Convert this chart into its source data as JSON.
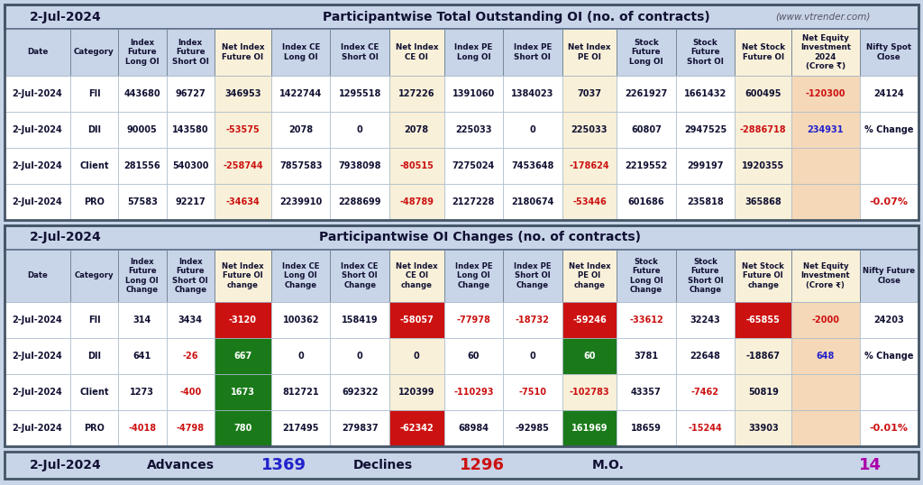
{
  "date": "2-Jul-2024",
  "title1": "Participantwise Total Outstanding OI (no. of contracts)",
  "title1_website": "(www.vtrender.com)",
  "title2": "Participantwise OI Changes (no. of contracts)",
  "bg_color": "#c8d4e8",
  "table1_header_cols": [
    "Date",
    "Category",
    "Index\nFuture\nLong OI",
    "Index\nFuture\nShort OI",
    "Net Index\nFuture OI",
    "Index CE\nLong OI",
    "Index CE\nShort OI",
    "Net Index\nCE OI",
    "Index PE\nLong OI",
    "Index PE\nShort OI",
    "Net Index\nPE OI",
    "Stock\nFuture\nLong OI",
    "Stock\nFuture\nShort OI",
    "Net Stock\nFuture OI",
    "Net Equity\nInvestment\n2024\n(Crore ₹)",
    "Nifty Spot\nClose"
  ],
  "table1_rows": [
    [
      "2-Jul-2024",
      "FII",
      "443680",
      "96727",
      "346953",
      "1422744",
      "1295518",
      "127226",
      "1391060",
      "1384023",
      "7037",
      "2261927",
      "1661432",
      "600495",
      "-120300",
      "24124"
    ],
    [
      "2-Jul-2024",
      "DII",
      "90005",
      "143580",
      "-53575",
      "2078",
      "0",
      "2078",
      "225033",
      "0",
      "225033",
      "60807",
      "2947525",
      "-2886718",
      "234931",
      ""
    ],
    [
      "2-Jul-2024",
      "Client",
      "281556",
      "540300",
      "-258744",
      "7857583",
      "7938098",
      "-80515",
      "7275024",
      "7453648",
      "-178624",
      "2219552",
      "299197",
      "1920355",
      "",
      ""
    ],
    [
      "2-Jul-2024",
      "PRO",
      "57583",
      "92217",
      "-34634",
      "2239910",
      "2288699",
      "-48789",
      "2127228",
      "2180674",
      "-53446",
      "601686",
      "235818",
      "365868",
      "",
      ""
    ]
  ],
  "table2_header_cols": [
    "Date",
    "Category",
    "Index\nFuture\nLong OI\nChange",
    "Index\nFuture\nShort OI\nChange",
    "Net Index\nFuture OI\nchange",
    "Index CE\nLong OI\nChange",
    "Index CE\nShort OI\nChange",
    "Net Index\nCE OI\nchange",
    "Index PE\nLong OI\nChange",
    "Index PE\nShort OI\nChange",
    "Net Index\nPE OI\nchange",
    "Stock\nFuture\nLong OI\nChange",
    "Stock\nFuture\nShort OI\nChange",
    "Net Stock\nFuture OI\nchange",
    "Net Equity\nInvestment\n(Crore ₹)",
    "Nifty Future\nClose"
  ],
  "table2_rows": [
    [
      "2-Jul-2024",
      "FII",
      "314",
      "3434",
      "-3120",
      "100362",
      "158419",
      "-58057",
      "-77978",
      "-18732",
      "-59246",
      "-33612",
      "32243",
      "-65855",
      "-2000",
      "24203"
    ],
    [
      "2-Jul-2024",
      "DII",
      "641",
      "-26",
      "667",
      "0",
      "0",
      "0",
      "60",
      "0",
      "60",
      "3781",
      "22648",
      "-18867",
      "648",
      ""
    ],
    [
      "2-Jul-2024",
      "Client",
      "1273",
      "-400",
      "1673",
      "812721",
      "692322",
      "120399",
      "-110293",
      "-7510",
      "-102783",
      "43357",
      "-7462",
      "50819",
      "",
      ""
    ],
    [
      "2-Jul-2024",
      "PRO",
      "-4018",
      "-4798",
      "780",
      "217495",
      "279837",
      "-62342",
      "68984",
      "-92985",
      "161969",
      "18659",
      "-15244",
      "33903",
      "",
      ""
    ]
  ],
  "net_cols": [
    4,
    7,
    10,
    13
  ],
  "net_equity_col": 14,
  "last_col": 15,
  "t1_red_text": [
    "-53575",
    "-258744",
    "-34634",
    "-80515",
    "-48789",
    "-178624",
    "-53446",
    "-120300",
    "-2886718"
  ],
  "t1_blue_text": [
    "234931"
  ],
  "t2_red_bg": [
    "-3120",
    "-58057",
    "-59246",
    "-65855",
    "-62342"
  ],
  "t2_green_bg": [
    "667",
    "1673",
    "780",
    "161969"
  ],
  "t2_green_bg_60": [
    "60"
  ],
  "t2_red_text": [
    "-26",
    "-400",
    "-4018",
    "-4798",
    "-77978",
    "-18732",
    "-110293",
    "-7510",
    "-102783",
    "-33612",
    "-7462",
    "-15244",
    "-2000"
  ],
  "t2_blue_text": [
    "648"
  ],
  "footer_advances": "1369",
  "footer_declines": "1296",
  "footer_mo": "14",
  "col_widths_raw": [
    60,
    44,
    44,
    44,
    52,
    54,
    54,
    50,
    54,
    54,
    50,
    54,
    54,
    52,
    62,
    54
  ]
}
